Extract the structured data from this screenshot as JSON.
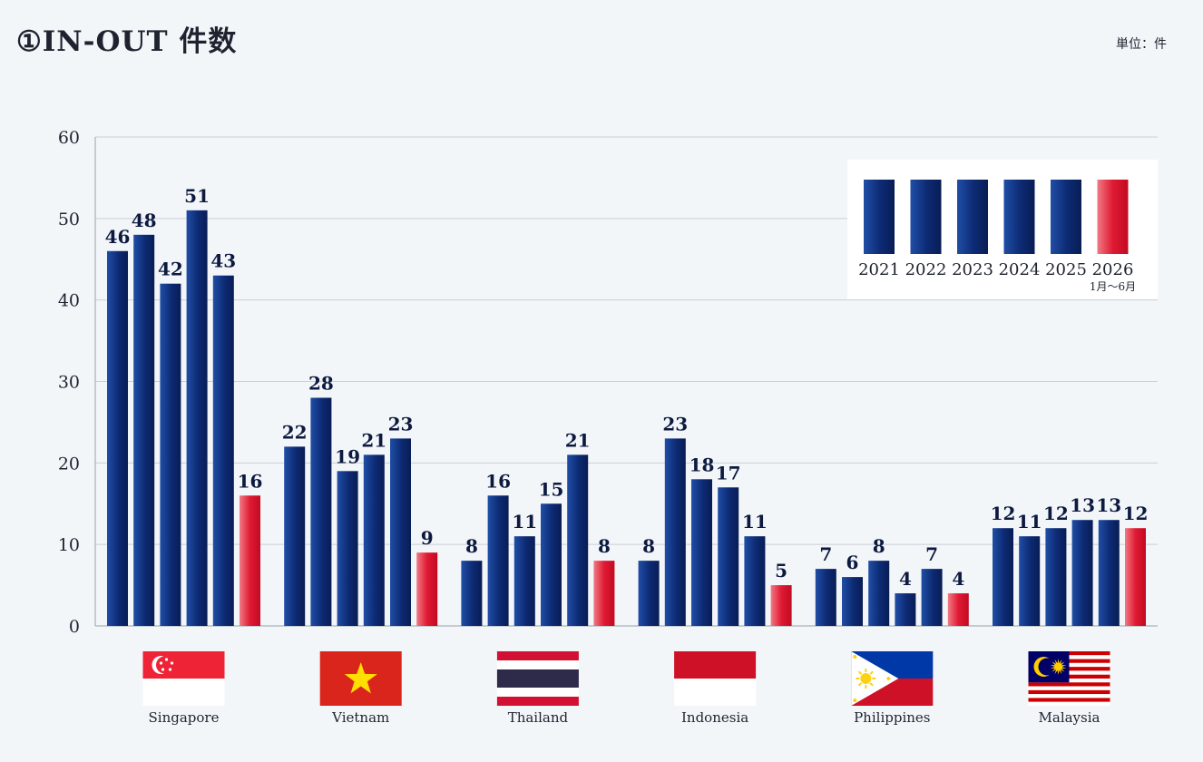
{
  "page": {
    "title": "①IN-OUT 件数",
    "unit": "単位：件"
  },
  "colors": {
    "past_years": "#0d2a73",
    "current_year": "#d8102a",
    "grid": "#c9ced8"
  },
  "chart_data": {
    "type": "bar",
    "title": "①IN-OUT 件数",
    "ylabel": "",
    "unit": "単位：件",
    "ylim": [
      0,
      60
    ],
    "yticks": [
      0,
      10,
      20,
      30,
      40,
      50,
      60
    ],
    "grid": true,
    "legend_position": "top-right",
    "categories": [
      "Singapore",
      "Vietnam",
      "Thailand",
      "Indonesia",
      "Philippines",
      "Malaysia"
    ],
    "category_flags": [
      "singapore-flag",
      "vietnam-flag",
      "thailand-flag",
      "indonesia-flag",
      "philippines-flag",
      "malaysia-flag"
    ],
    "series": [
      {
        "name": "2021",
        "values": [
          46,
          22,
          8,
          8,
          7,
          12
        ]
      },
      {
        "name": "2022",
        "values": [
          48,
          28,
          16,
          23,
          6,
          11
        ]
      },
      {
        "name": "2023",
        "values": [
          42,
          19,
          11,
          18,
          8,
          12
        ]
      },
      {
        "name": "2024",
        "values": [
          51,
          21,
          15,
          17,
          4,
          13
        ]
      },
      {
        "name": "2025",
        "values": [
          43,
          23,
          21,
          11,
          7,
          13
        ]
      },
      {
        "name": "2026",
        "note": "1月～6月",
        "values": [
          16,
          9,
          8,
          5,
          4,
          12
        ]
      }
    ]
  }
}
